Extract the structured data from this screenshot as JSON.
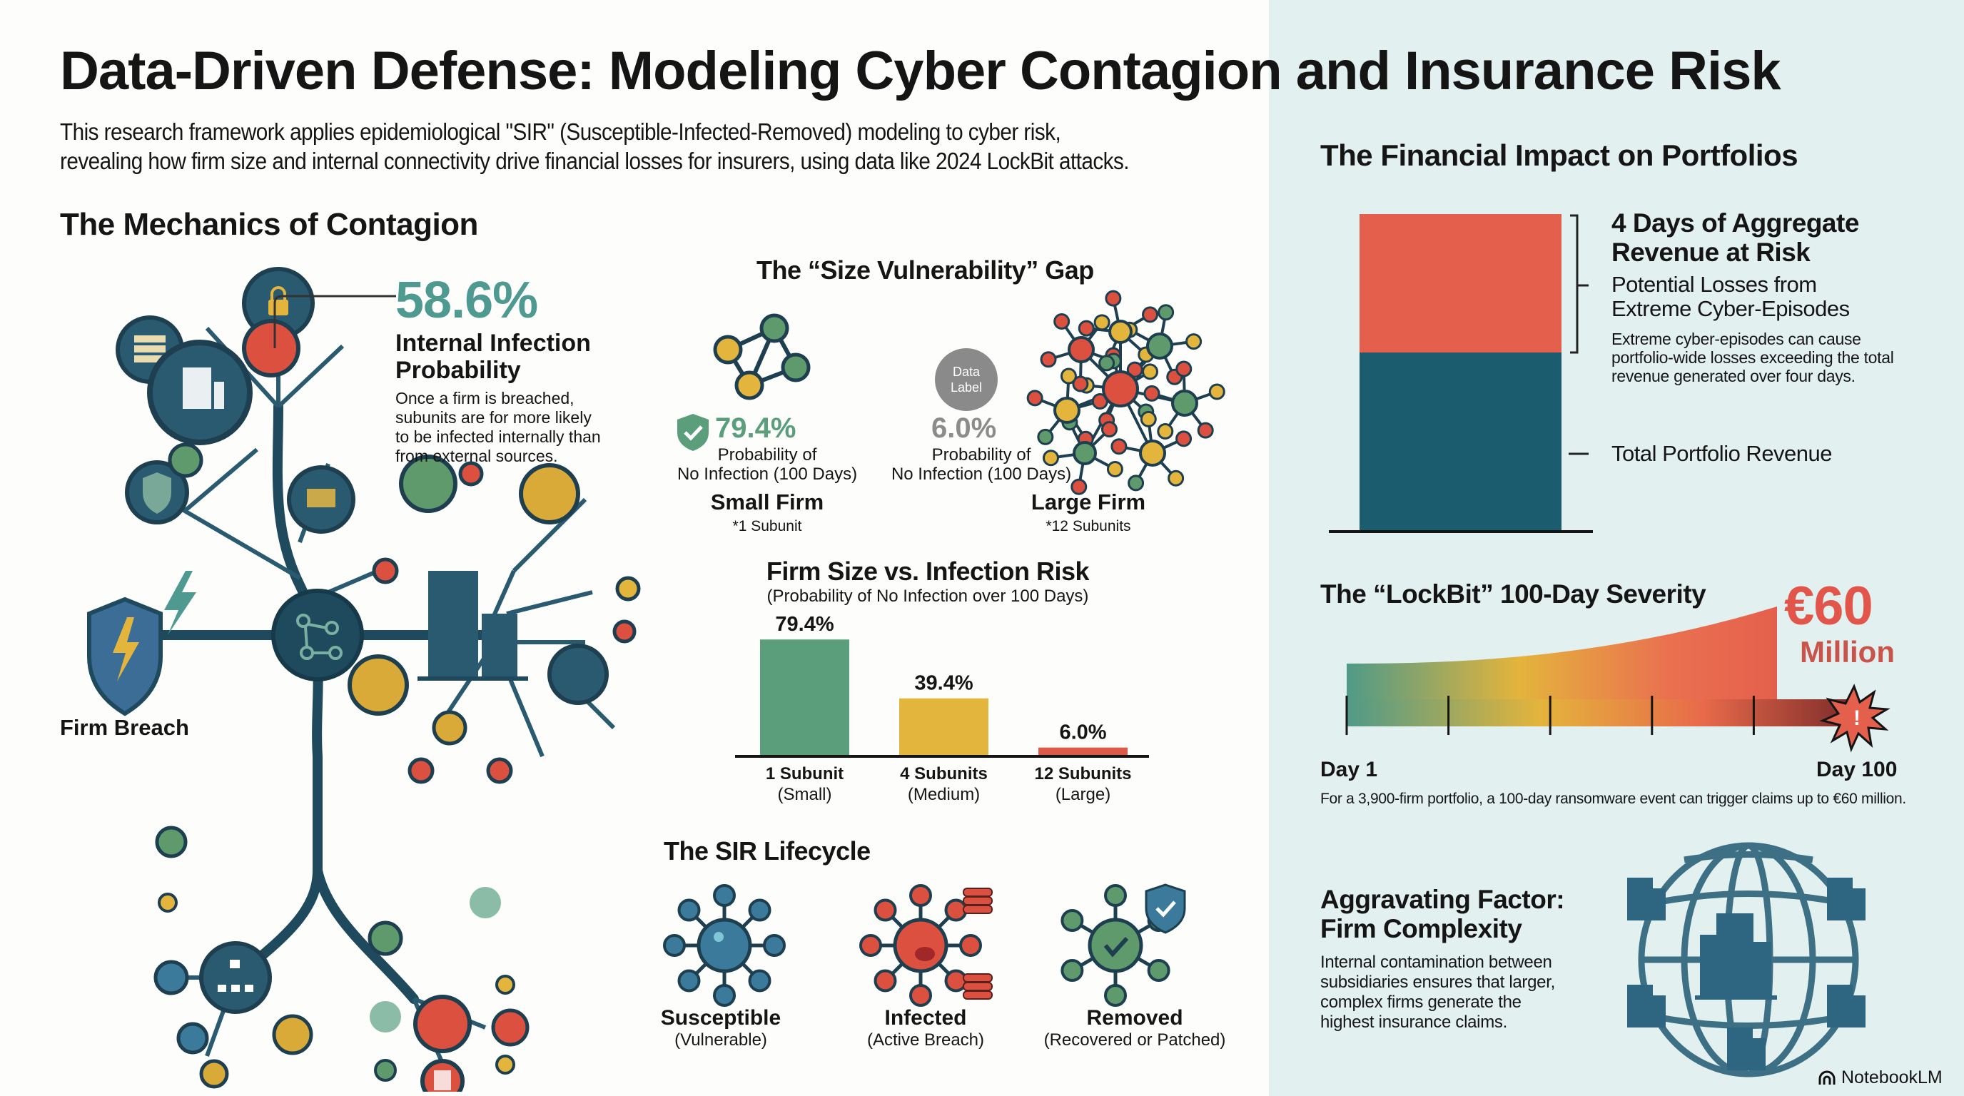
{
  "header": {
    "title": "Data-Driven Defense: Modeling Cyber Contagion and Insurance Risk",
    "subtitle_line1": "This research framework applies epidemiological \"SIR\" (Susceptible-Infected-Removed) modeling to cyber risk,",
    "subtitle_line2": "revealing how firm size and internal connectivity drive financial losses for insurers, using data like 2024 LockBit attacks."
  },
  "mechanics": {
    "heading": "The Mechanics of Contagion",
    "stat_value": "58.6%",
    "stat_label_line1": "Internal Infection",
    "stat_label_line2": "Probability",
    "stat_desc": [
      "Once a firm is breached,",
      "subunits are for more likely",
      "to be infected internally than",
      "from external sources."
    ],
    "breach_label": "Firm Breach",
    "icons": [
      "lock-icon",
      "server-icon",
      "building-icon",
      "shield-alert-icon",
      "laptop-icon",
      "network-hub-icon",
      "lightning-shield-icon",
      "org-chart-icon",
      "document-icon"
    ]
  },
  "size_gap": {
    "heading": "The “Size Vulnerability” Gap",
    "small": {
      "value": "79.4%",
      "desc_line1": "Probability of",
      "desc_line2": "No Infection (100 Days)",
      "name": "Small Firm",
      "note": "*1 Subunit"
    },
    "large": {
      "value": "6.0%",
      "desc_line1": "Probability of",
      "desc_line2": "No Infection (100 Days)",
      "name": "Large Firm",
      "note": "*12 Subunits",
      "badge_line1": "Data",
      "badge_line2": "Label"
    }
  },
  "chart_data": [
    {
      "type": "bar",
      "title": "Firm Size vs. Infection Risk",
      "subtitle": "(Probability of No Infection over 100 Days)",
      "categories": [
        "1 Subunit",
        "4 Subunits",
        "12 Subunits"
      ],
      "category_sublabels": [
        "(Small)",
        "(Medium)",
        "(Large)"
      ],
      "values": [
        79.4,
        39.4,
        6.0
      ],
      "value_labels": [
        "79.4%",
        "39.4%",
        "6.0%"
      ],
      "colors": [
        "#5a9e7c",
        "#e3b53c",
        "#dc5a4a"
      ],
      "unit": "%",
      "ylim": [
        0,
        100
      ],
      "grid": false,
      "xlabel": "",
      "ylabel": ""
    },
    {
      "type": "bar",
      "title": "The Financial Impact on Portfolios",
      "stacked": true,
      "segments": [
        {
          "name": "Total Portfolio Revenue",
          "relative_value": 1.0,
          "color": "#1b5c6e"
        },
        {
          "name": "4 Days of Aggregate Revenue at Risk",
          "relative_value": 1.0,
          "color": "#e4604c"
        }
      ]
    },
    {
      "type": "area",
      "title": "The “LockBit” 100-Day Severity",
      "x_labels": [
        "Day 1",
        "Day 100"
      ],
      "xlim": [
        1,
        100
      ],
      "peak_label": "€60 Million",
      "peak_value_million_eur": 60
    }
  ],
  "sir": {
    "heading": "The SIR Lifecycle",
    "stages": [
      {
        "name": "Susceptible",
        "desc": "(Vulnerable)",
        "color": "#3b7a9a"
      },
      {
        "name": "Infected",
        "desc": "(Active Breach)",
        "color": "#dc5040"
      },
      {
        "name": "Removed",
        "desc": "(Recovered or Patched)",
        "color": "#5f9a6c"
      }
    ]
  },
  "financial": {
    "heading": "The Financial Impact on Portfolios",
    "risk_title_line1": "4 Days of Aggregate",
    "risk_title_line2": "Revenue at Risk",
    "losses_line1": "Potential Losses from",
    "losses_line2": "Extreme Cyber-Episodes",
    "desc": [
      "Extreme cyber-episodes can cause",
      "portfolio-wide losses exceeding the total",
      "revenue generated over four days."
    ],
    "revenue_label": "Total Portfolio Revenue",
    "colors": {
      "risk": "#e4604c",
      "revenue": "#1b5c6e"
    }
  },
  "lockbit": {
    "heading": "The “LockBit” 100-Day Severity",
    "amount": "€60",
    "amount_unit": "Million",
    "day_start": "Day 1",
    "day_end": "Day 100",
    "footnote": "For a 3,900-firm portfolio, a 100-day ransomware event can trigger claims up to €60 million."
  },
  "complexity": {
    "heading_line1": "Aggravating Factor:",
    "heading_line2": "Firm Complexity",
    "desc": [
      "Internal contamination between",
      "subsidiaries ensures that larger,",
      "complex firms generate the",
      "highest insurance claims."
    ]
  },
  "branding": {
    "label": "NotebookLM"
  }
}
